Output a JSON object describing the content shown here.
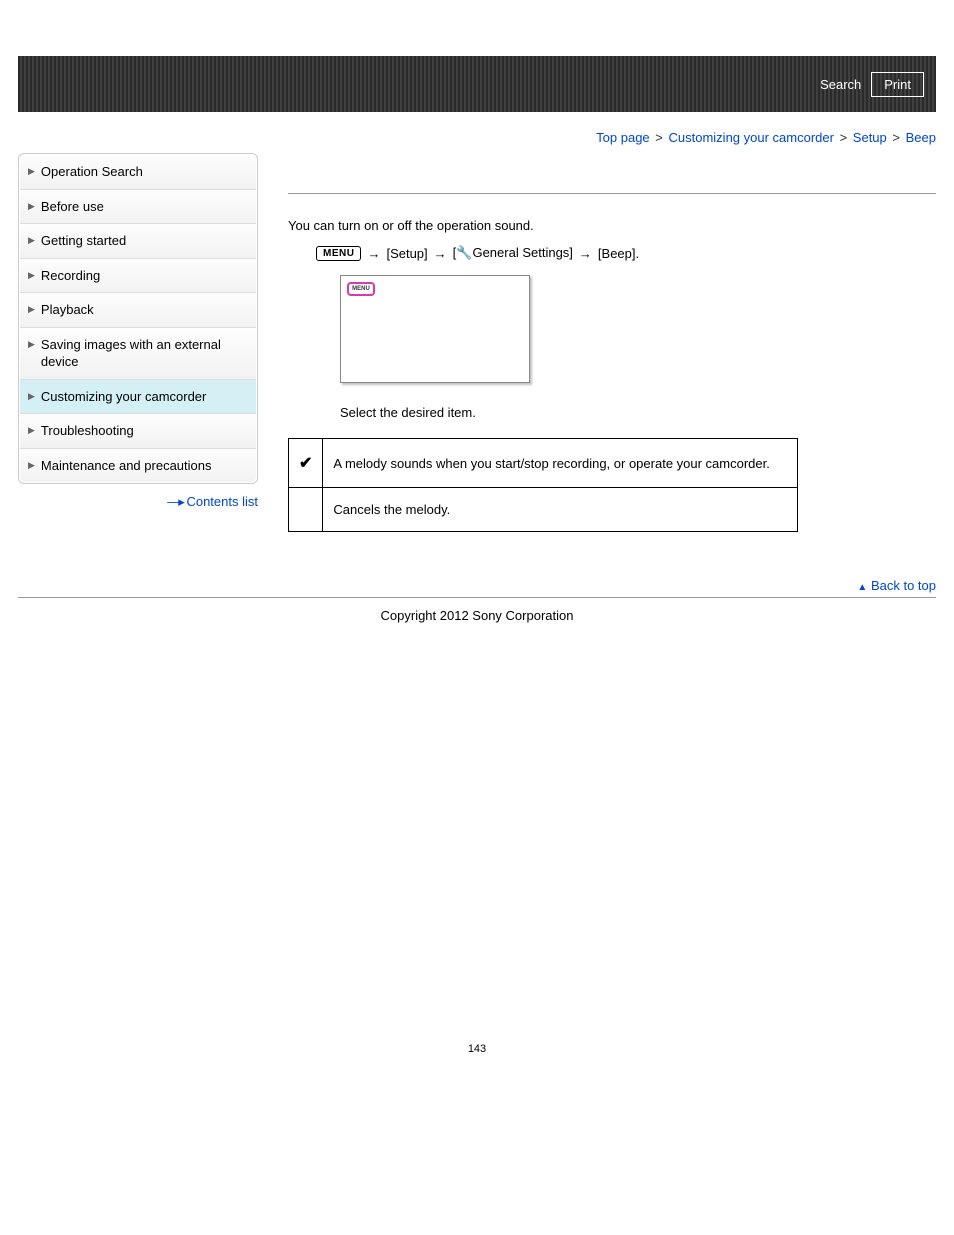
{
  "header": {
    "search_label": "Search",
    "print_label": "Print"
  },
  "breadcrumb": {
    "items": [
      "Top page",
      "Customizing your camcorder",
      "Setup",
      "Beep"
    ],
    "separator": ">"
  },
  "sidebar": {
    "items": [
      {
        "label": "Operation Search",
        "active": false
      },
      {
        "label": "Before use",
        "active": false
      },
      {
        "label": "Getting started",
        "active": false
      },
      {
        "label": "Recording",
        "active": false
      },
      {
        "label": "Playback",
        "active": false
      },
      {
        "label": "Saving images with an external device",
        "active": false
      },
      {
        "label": "Customizing your camcorder",
        "active": true
      },
      {
        "label": "Troubleshooting",
        "active": false
      },
      {
        "label": "Maintenance and precautions",
        "active": false
      }
    ],
    "contents_list_label": "Contents list"
  },
  "content": {
    "intro": "You can turn on or off the operation sound.",
    "menu_badge": "MENU",
    "path_setup": "[Setup]",
    "path_general_prefix": "[",
    "path_general": "General Settings]",
    "path_beep": "[Beep].",
    "step_text": "Select the desired item.",
    "options": [
      {
        "icon": "✔",
        "desc": "A melody sounds when you start/stop recording, or operate your camcorder."
      },
      {
        "icon": "",
        "desc": "Cancels the melody."
      }
    ]
  },
  "footer": {
    "back_to_top": "Back to top",
    "copyright": "Copyright 2012 Sony Corporation",
    "page_number": "143"
  },
  "colors": {
    "link": "#0046d5",
    "active_sidebar": "#d4f0f5",
    "highlight_border": "#d63ab0"
  }
}
